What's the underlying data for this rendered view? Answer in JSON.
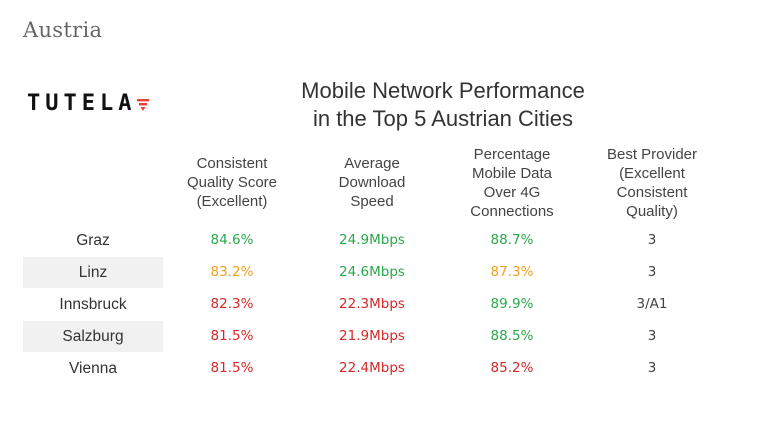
{
  "page": {
    "region": "Austria",
    "brand": "TUTELA",
    "title_lines": [
      "Mobile Network Performance",
      "in the Top 5 Austrian Cities"
    ]
  },
  "colors": {
    "good": "#2aa84a",
    "mid": "#f0a020",
    "bad": "#d42a2a",
    "neutral": "#444444",
    "logo_accent": "#e8413a"
  },
  "chart_data": {
    "type": "table",
    "columns": [
      [
        "Consistent",
        "Quality Score",
        "(Excellent)"
      ],
      [
        "Average",
        "Download",
        "Speed"
      ],
      [
        "Percentage",
        "Mobile Data",
        "Over 4G",
        "Connections"
      ],
      [
        "Best Provider",
        "(Excellent",
        "Consistent",
        "Quality)"
      ]
    ],
    "rows": [
      {
        "city": "Graz",
        "cells": [
          "84.6%",
          "24.9Mbps",
          "88.7%",
          "3"
        ],
        "status": [
          "good",
          "good",
          "good",
          "neutral"
        ]
      },
      {
        "city": "Linz",
        "cells": [
          "83.2%",
          "24.6Mbps",
          "87.3%",
          "3"
        ],
        "status": [
          "mid",
          "good",
          "mid",
          "neutral"
        ]
      },
      {
        "city": "Innsbruck",
        "cells": [
          "82.3%",
          "22.3Mbps",
          "89.9%",
          "3/A1"
        ],
        "status": [
          "bad",
          "bad",
          "good",
          "neutral"
        ]
      },
      {
        "city": "Salzburg",
        "cells": [
          "81.5%",
          "21.9Mbps",
          "88.5%",
          "3"
        ],
        "status": [
          "bad",
          "bad",
          "good",
          "neutral"
        ]
      },
      {
        "city": "Vienna",
        "cells": [
          "81.5%",
          "22.4Mbps",
          "85.2%",
          "3"
        ],
        "status": [
          "bad",
          "bad",
          "bad",
          "neutral"
        ]
      }
    ]
  }
}
